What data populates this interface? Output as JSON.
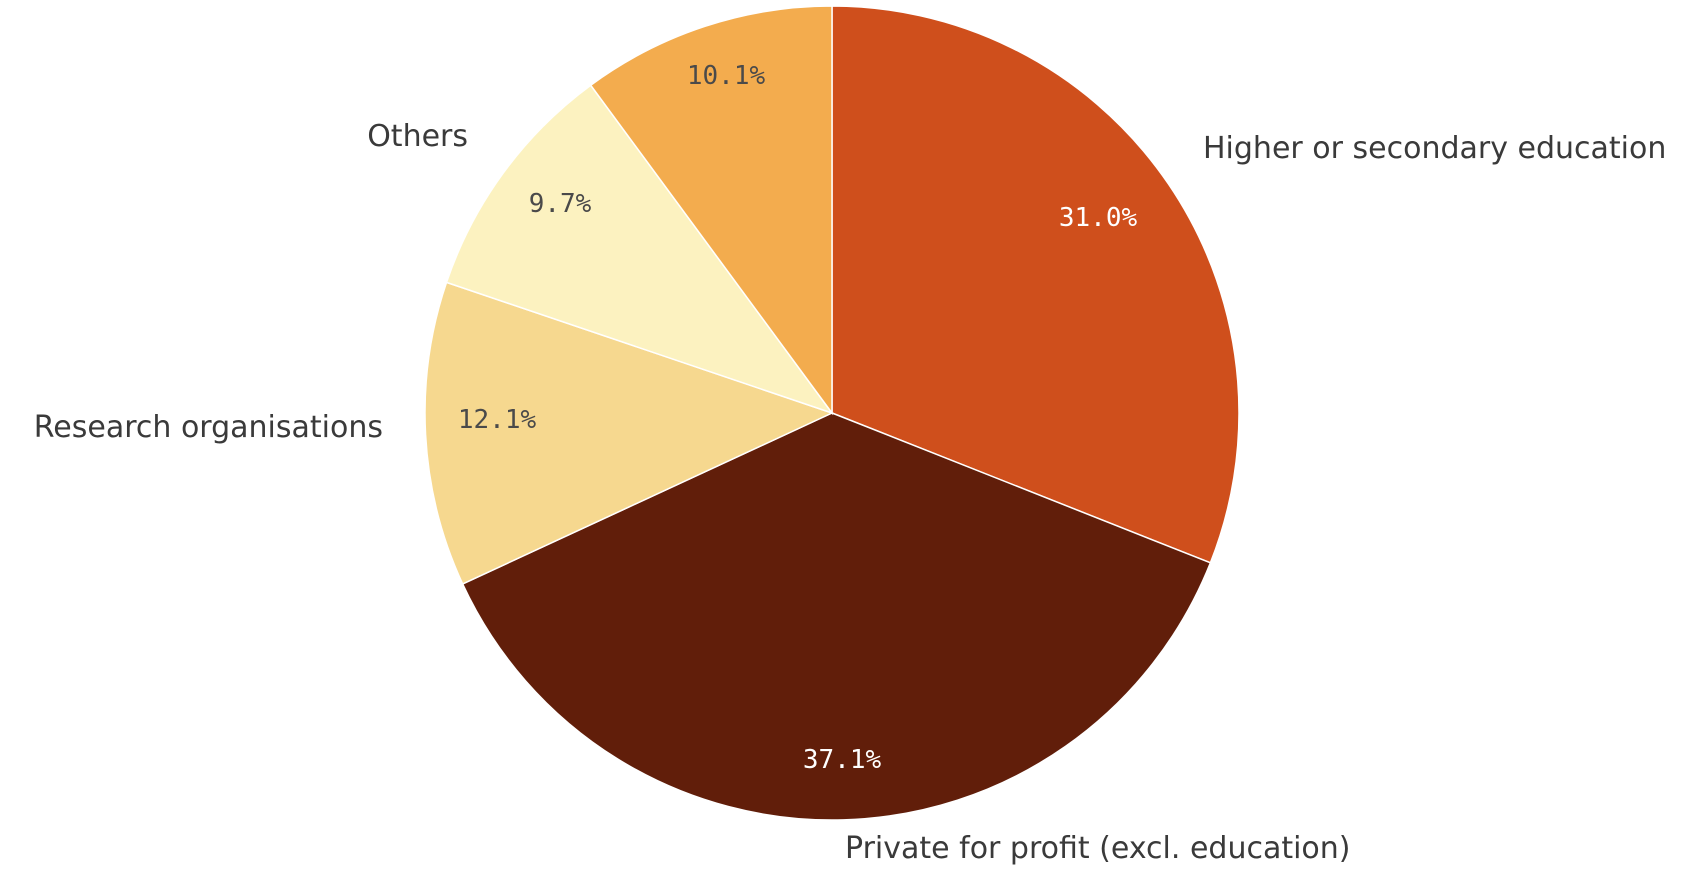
{
  "chart_data": {
    "type": "pie",
    "title": "",
    "slices": [
      {
        "label": "Higher or secondary education",
        "value": 31.0,
        "value_label": "31.0%",
        "color": "#CF4F1C",
        "text_color": "#ffffff"
      },
      {
        "label": "Private for profit (excl. education)",
        "value": 37.1,
        "value_label": "37.1%",
        "color": "#611E0A",
        "text_color": "#ffffff"
      },
      {
        "label": "Research organisations",
        "value": 12.1,
        "value_label": "12.1%",
        "color": "#F6D88F",
        "text_color": "#4a4a4a"
      },
      {
        "label": "Others",
        "value": 9.7,
        "value_label": "9.7%",
        "color": "#FCF2C0",
        "text_color": "#4a4a4a"
      },
      {
        "label": "",
        "value": 10.1,
        "value_label": "10.1%",
        "color": "#F3AC4E",
        "text_color": "#4a4a4a"
      }
    ],
    "start_angle": "top",
    "direction": "clockwise",
    "legend": "none"
  }
}
